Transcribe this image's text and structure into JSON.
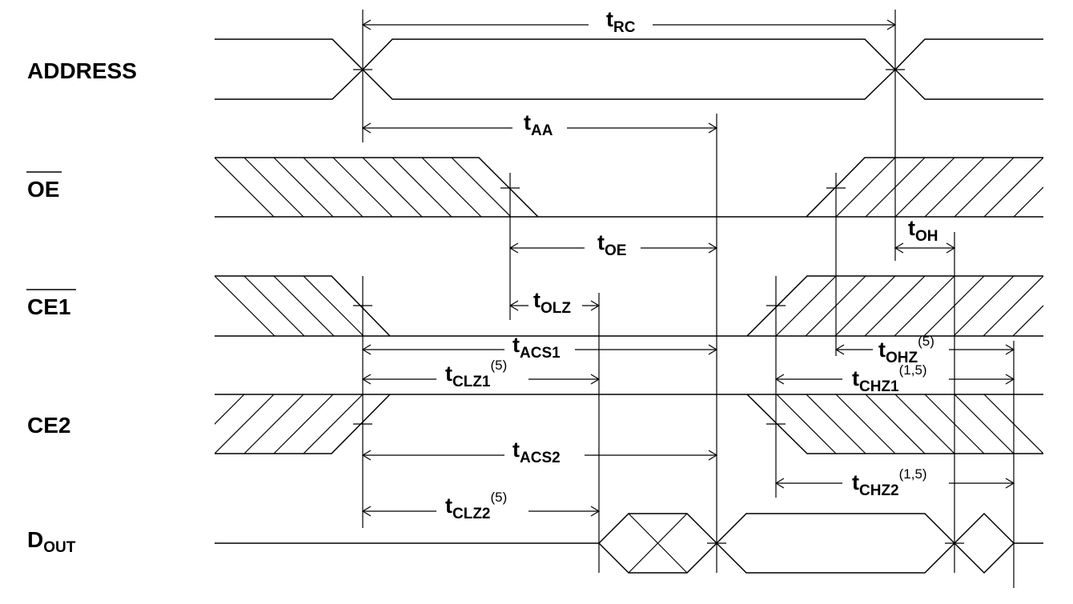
{
  "signals": {
    "address": {
      "label": "ADDRESS"
    },
    "oe": {
      "label": "OE"
    },
    "ce1": {
      "label": "CE1"
    },
    "ce2": {
      "label": "CE2"
    },
    "dout": {
      "main": "D",
      "sub": "OUT"
    }
  },
  "timings": {
    "trc": {
      "t": "t",
      "sub": "RC",
      "sup": ""
    },
    "taa": {
      "t": "t",
      "sub": "AA",
      "sup": ""
    },
    "toe": {
      "t": "t",
      "sub": "OE",
      "sup": ""
    },
    "toh": {
      "t": "t",
      "sub": "OH",
      "sup": ""
    },
    "tolz": {
      "t": "t",
      "sub": "OLZ",
      "sup": ""
    },
    "tacs1": {
      "t": "t",
      "sub": "ACS1",
      "sup": ""
    },
    "tohz": {
      "t": "t",
      "sub": "OHZ",
      "sup": "(5)"
    },
    "tclz1": {
      "t": "t",
      "sub": "CLZ1",
      "sup": "(5)"
    },
    "tchz1": {
      "t": "t",
      "sub": "CHZ1",
      "sup": "(1,5)"
    },
    "tacs2": {
      "t": "t",
      "sub": "ACS2",
      "sup": ""
    },
    "tchz2": {
      "t": "t",
      "sub": "CHZ2",
      "sup": "(1,5)"
    },
    "tclz2": {
      "t": "t",
      "sub": "CLZ2",
      "sup": "(5)"
    }
  }
}
